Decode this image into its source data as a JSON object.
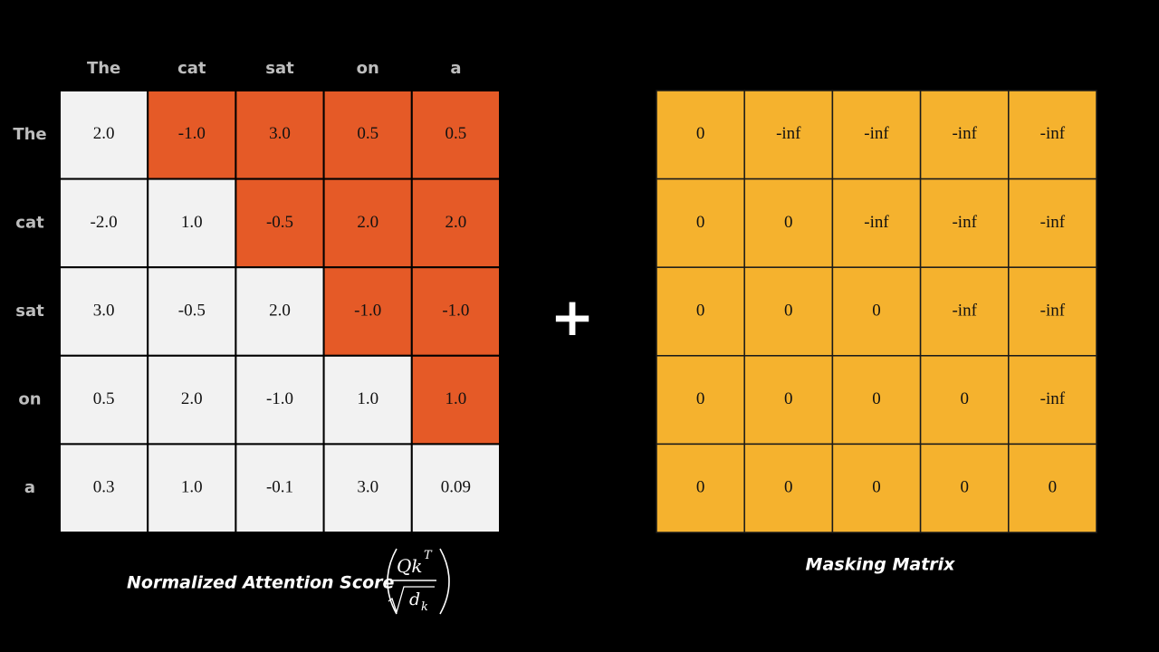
{
  "attention_matrix": {
    "column_labels": [
      "The",
      "cat",
      "sat",
      "on",
      "a"
    ],
    "row_labels": [
      "The",
      "cat",
      "sat",
      "on",
      "a"
    ],
    "rows": [
      [
        "2.0",
        "-1.0",
        "3.0",
        "0.5",
        "0.5"
      ],
      [
        "-2.0",
        "1.0",
        "-0.5",
        "2.0",
        "2.0"
      ],
      [
        "3.0",
        "-0.5",
        "2.0",
        "-1.0",
        "-1.0"
      ],
      [
        "0.5",
        "2.0",
        "-1.0",
        "1.0",
        "1.0"
      ],
      [
        "0.3",
        "1.0",
        "-0.1",
        "3.0",
        "0.09"
      ]
    ],
    "caption": "Normalized Attention Score",
    "formula": {
      "numerator": "Qk",
      "superscript": "T",
      "denominator": "d",
      "subscript": "k"
    }
  },
  "operator": "+",
  "masking_matrix": {
    "rows": [
      [
        "0",
        "-inf",
        "-inf",
        "-inf",
        "-inf"
      ],
      [
        "0",
        "0",
        "-inf",
        "-inf",
        "-inf"
      ],
      [
        "0",
        "0",
        "0",
        "-inf",
        "-inf"
      ],
      [
        "0",
        "0",
        "0",
        "0",
        "-inf"
      ],
      [
        "0",
        "0",
        "0",
        "0",
        "0"
      ]
    ],
    "caption": "Masking Matrix"
  }
}
